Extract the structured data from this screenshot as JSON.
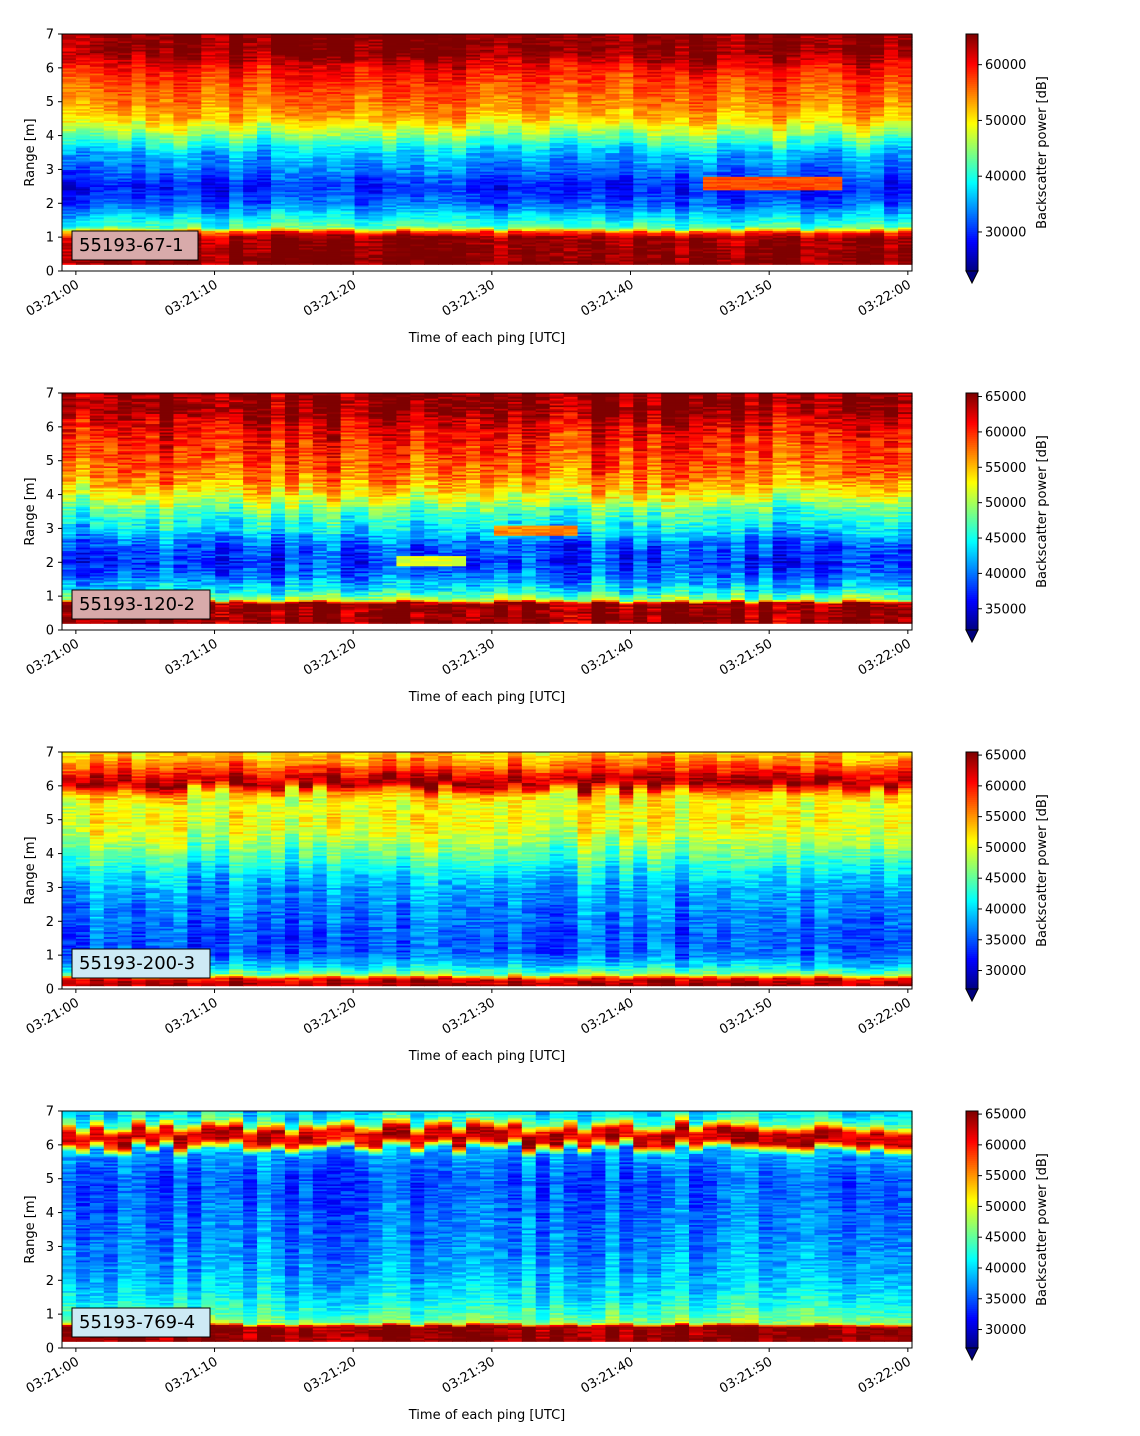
{
  "colormap": "jet",
  "colormap_stops": [
    "#00007f",
    "#0000ff",
    "#007fff",
    "#00ffff",
    "#7fff7f",
    "#ffff00",
    "#ff7f00",
    "#ff0000",
    "#7f0000"
  ],
  "chart_data": [
    {
      "type": "heatmap",
      "label": "55193-67-1",
      "label_bg": "#d8aaaa",
      "xlabel": "Time of each ping [UTC]",
      "ylabel": "Range [m]",
      "colorbar_label": "Backscatter power [dB]",
      "x_ticks": [
        "03:21:00",
        "03:21:10",
        "03:21:20",
        "03:21:30",
        "03:21:40",
        "03:21:50",
        "03:22:00"
      ],
      "x_range_seconds": [
        -1,
        60.3
      ],
      "ylim": [
        0,
        7
      ],
      "y_ticks": [
        0,
        1,
        2,
        3,
        4,
        5,
        6,
        7
      ],
      "clim": [
        23000,
        65500
      ],
      "cbar_ticks": [
        30000,
        40000,
        50000,
        60000
      ],
      "colorbar_extend": "min",
      "n_pings": 61,
      "range_min": 0.2,
      "profile": [
        [
          0.2,
          65000
        ],
        [
          0.5,
          65000
        ],
        [
          1.0,
          64000
        ],
        [
          1.15,
          58000
        ],
        [
          1.3,
          42000
        ],
        [
          1.6,
          38000
        ],
        [
          2.0,
          32000
        ],
        [
          2.5,
          29000
        ],
        [
          3.0,
          33000
        ],
        [
          3.5,
          36000
        ],
        [
          4.0,
          44000
        ],
        [
          4.5,
          52000
        ],
        [
          5.0,
          55000
        ],
        [
          5.5,
          57000
        ],
        [
          6.0,
          60000
        ],
        [
          6.4,
          64500
        ],
        [
          7.0,
          65000
        ]
      ],
      "noise": 4500,
      "events": [
        {
          "t": [
            46,
            55
          ],
          "r": [
            2.4,
            2.8
          ],
          "value": 57000
        }
      ]
    },
    {
      "type": "heatmap",
      "label": "55193-120-2",
      "label_bg": "#d8aaaa",
      "xlabel": "Time of each ping [UTC]",
      "ylabel": "Range [m]",
      "colorbar_label": "Backscatter power [dB]",
      "x_ticks": [
        "03:21:00",
        "03:21:10",
        "03:21:20",
        "03:21:30",
        "03:21:40",
        "03:21:50",
        "03:22:00"
      ],
      "x_range_seconds": [
        -1,
        60.3
      ],
      "ylim": [
        0,
        7
      ],
      "y_ticks": [
        0,
        1,
        2,
        3,
        4,
        5,
        6,
        7
      ],
      "clim": [
        32000,
        65500
      ],
      "cbar_ticks": [
        35000,
        40000,
        45000,
        50000,
        55000,
        60000,
        65000
      ],
      "colorbar_extend": "min",
      "n_pings": 61,
      "range_min": 0.2,
      "profile": [
        [
          0.2,
          65000
        ],
        [
          0.8,
          65000
        ],
        [
          0.9,
          50000
        ],
        [
          1.2,
          44000
        ],
        [
          1.6,
          40000
        ],
        [
          2.0,
          38000
        ],
        [
          2.5,
          39000
        ],
        [
          3.0,
          44000
        ],
        [
          3.5,
          47000
        ],
        [
          4.0,
          53000
        ],
        [
          4.5,
          57000
        ],
        [
          5.0,
          59000
        ],
        [
          5.5,
          60000
        ],
        [
          6.0,
          62000
        ],
        [
          6.5,
          65000
        ],
        [
          7.0,
          65000
        ]
      ],
      "noise": 5000,
      "events": [
        {
          "t": [
            31,
            36
          ],
          "r": [
            2.8,
            3.1
          ],
          "value": 57000
        },
        {
          "t": [
            24,
            28
          ],
          "r": [
            1.9,
            2.2
          ],
          "value": 52000
        }
      ]
    },
    {
      "type": "heatmap",
      "label": "55193-200-3",
      "label_bg": "#cdeaf5",
      "xlabel": "Time of each ping [UTC]",
      "ylabel": "Range [m]",
      "colorbar_label": "Backscatter power [dB]",
      "x_ticks": [
        "03:21:00",
        "03:21:10",
        "03:21:20",
        "03:21:30",
        "03:21:40",
        "03:21:50",
        "03:22:00"
      ],
      "x_range_seconds": [
        -1,
        60.3
      ],
      "ylim": [
        0,
        7
      ],
      "y_ticks": [
        0,
        1,
        2,
        3,
        4,
        5,
        6,
        7
      ],
      "clim": [
        27000,
        65500
      ],
      "cbar_ticks": [
        30000,
        35000,
        40000,
        45000,
        50000,
        55000,
        60000,
        65000
      ],
      "colorbar_extend": "min",
      "n_pings": 61,
      "range_min": 0.1,
      "profile": [
        [
          0.1,
          64000
        ],
        [
          0.3,
          62000
        ],
        [
          0.45,
          46000
        ],
        [
          0.7,
          40000
        ],
        [
          1.0,
          36000
        ],
        [
          1.5,
          35000
        ],
        [
          2.0,
          36000
        ],
        [
          2.5,
          37000
        ],
        [
          3.0,
          38000
        ],
        [
          3.5,
          41000
        ],
        [
          4.0,
          45000
        ],
        [
          4.5,
          49000
        ],
        [
          5.0,
          51000
        ],
        [
          5.5,
          50000
        ],
        [
          5.8,
          54000
        ],
        [
          6.1,
          65000
        ],
        [
          6.4,
          60000
        ],
        [
          7.0,
          52000
        ]
      ],
      "noise": 4500,
      "events": []
    },
    {
      "type": "heatmap",
      "label": "55193-769-4",
      "label_bg": "#cdeaf5",
      "xlabel": "Time of each ping [UTC]",
      "ylabel": "Range [m]",
      "colorbar_label": "Backscatter power [dB]",
      "x_ticks": [
        "03:21:00",
        "03:21:10",
        "03:21:20",
        "03:21:30",
        "03:21:40",
        "03:21:50",
        "03:22:00"
      ],
      "x_range_seconds": [
        -1,
        60.3
      ],
      "ylim": [
        0,
        7
      ],
      "y_ticks": [
        0,
        1,
        2,
        3,
        4,
        5,
        6,
        7
      ],
      "clim": [
        27000,
        65500
      ],
      "cbar_ticks": [
        30000,
        35000,
        40000,
        45000,
        50000,
        55000,
        60000,
        65000
      ],
      "colorbar_extend": "min",
      "n_pings": 61,
      "range_min": 0.2,
      "profile": [
        [
          0.2,
          65000
        ],
        [
          0.65,
          65000
        ],
        [
          0.75,
          47000
        ],
        [
          1.0,
          44000
        ],
        [
          1.5,
          41000
        ],
        [
          2.0,
          39000
        ],
        [
          3.0,
          37000
        ],
        [
          4.0,
          36000
        ],
        [
          5.0,
          35000
        ],
        [
          5.8,
          38000
        ],
        [
          6.1,
          62000
        ],
        [
          6.4,
          63000
        ],
        [
          6.7,
          44000
        ],
        [
          7.0,
          40000
        ]
      ],
      "noise": 4500,
      "events": []
    }
  ]
}
